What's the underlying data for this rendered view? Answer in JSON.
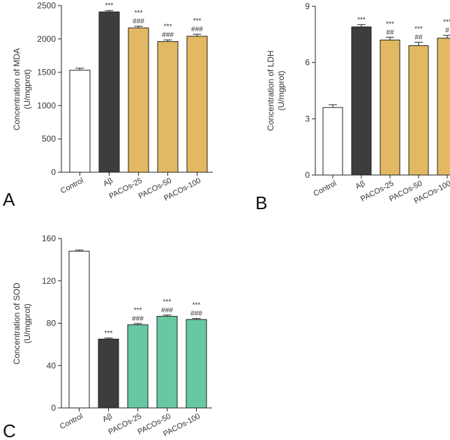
{
  "chart_data": [
    {
      "panel_label": "A",
      "type": "bar",
      "categories": [
        "Control",
        "Aβ",
        "PACOs-25",
        "PACOs-50",
        "PACOs-100"
      ],
      "values": [
        1530,
        2405,
        2165,
        1960,
        2040
      ],
      "errors": [
        30,
        20,
        25,
        25,
        30
      ],
      "ylabel": "Concentration  of MDA",
      "ylabel_unit": "(U/mgprot)",
      "ylim": [
        0,
        2500
      ],
      "yticks": [
        "0",
        "500",
        "1000",
        "1500",
        "2000",
        "2500"
      ],
      "annotations": [
        "",
        "***",
        "***\n###",
        "***\n###",
        "***\n###"
      ],
      "colors": [
        "#ffffff",
        "#3d3d3d",
        "#e2b962",
        "#e2b962",
        "#e2b962"
      ]
    },
    {
      "panel_label": "B",
      "type": "bar",
      "categories": [
        "Control",
        "Aβ",
        "PACOs-25",
        "PACOs-50",
        "PACOs-100"
      ],
      "values": [
        3.6,
        7.9,
        7.2,
        6.9,
        7.3
      ],
      "errors": [
        0.15,
        0.12,
        0.15,
        0.18,
        0.15
      ],
      "ylabel": "Concentration  of LDH",
      "ylabel_unit": "(U/mgprot)",
      "ylim": [
        0,
        9
      ],
      "yticks": [
        "0",
        "3",
        "6",
        "9"
      ],
      "annotations": [
        "",
        "***",
        "***\n##",
        "***\n##",
        "***\n#"
      ],
      "colors": [
        "#ffffff",
        "#3d3d3d",
        "#e2b962",
        "#e2b962",
        "#e2b962"
      ]
    },
    {
      "panel_label": "C",
      "type": "bar",
      "categories": [
        "Control",
        "Aβ",
        "PACOs-25",
        "PACOs-50",
        "PACOs-100"
      ],
      "values": [
        148,
        65,
        78.5,
        86.5,
        83.5
      ],
      "errors": [
        1.0,
        1.0,
        1.2,
        1.2,
        1.0
      ],
      "ylabel": "Concentration  of SOD",
      "ylabel_unit": "(U/mgprot)",
      "ylim": [
        0,
        160
      ],
      "yticks": [
        "0",
        "40",
        "80",
        "120",
        "160"
      ],
      "annotations": [
        "",
        "***",
        "***\n###",
        "***\n###",
        "***\n###"
      ],
      "colors": [
        "#ffffff",
        "#3d3d3d",
        "#66c9a2",
        "#66c9a2",
        "#66c9a2"
      ]
    }
  ]
}
